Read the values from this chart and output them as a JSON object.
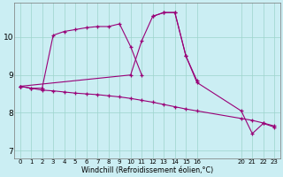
{
  "xlabel": "Windchill (Refroidissement éolien,°C)",
  "bg_color": "#cbeef3",
  "grid_color": "#9dd4cc",
  "line_color": "#990077",
  "xlim": [
    -0.5,
    23.5
  ],
  "ylim": [
    6.8,
    10.9
  ],
  "xticks": [
    0,
    1,
    2,
    3,
    4,
    5,
    6,
    7,
    8,
    9,
    10,
    11,
    12,
    13,
    14,
    15,
    16,
    20,
    21,
    22,
    23
  ],
  "yticks": [
    7,
    8,
    9,
    10
  ],
  "series": [
    {
      "x": [
        0,
        1,
        2,
        3,
        4,
        5,
        6,
        7,
        8,
        9,
        10,
        11,
        12,
        13,
        14,
        15,
        16,
        20,
        21,
        22,
        23
      ],
      "y": [
        8.7,
        8.65,
        8.6,
        8.58,
        8.55,
        8.52,
        8.5,
        8.48,
        8.45,
        8.42,
        8.38,
        8.33,
        8.28,
        8.22,
        8.16,
        8.1,
        8.05,
        7.85,
        7.8,
        7.73,
        7.65
      ]
    },
    {
      "x": [
        0,
        1,
        2,
        3,
        4,
        5,
        6,
        7,
        8,
        9,
        10,
        11
      ],
      "y": [
        8.7,
        8.65,
        8.65,
        10.05,
        10.15,
        10.2,
        10.25,
        10.28,
        10.28,
        10.35,
        9.75,
        9.0
      ]
    },
    {
      "x": [
        0,
        10,
        11,
        12,
        13,
        14,
        15,
        16
      ],
      "y": [
        8.7,
        9.0,
        9.9,
        10.55,
        10.65,
        10.65,
        9.5,
        8.85
      ]
    },
    {
      "x": [
        12,
        13,
        14,
        15,
        16,
        20,
        21,
        22,
        23
      ],
      "y": [
        10.55,
        10.65,
        10.65,
        9.5,
        8.8,
        8.05,
        7.45,
        7.72,
        7.62
      ]
    }
  ]
}
